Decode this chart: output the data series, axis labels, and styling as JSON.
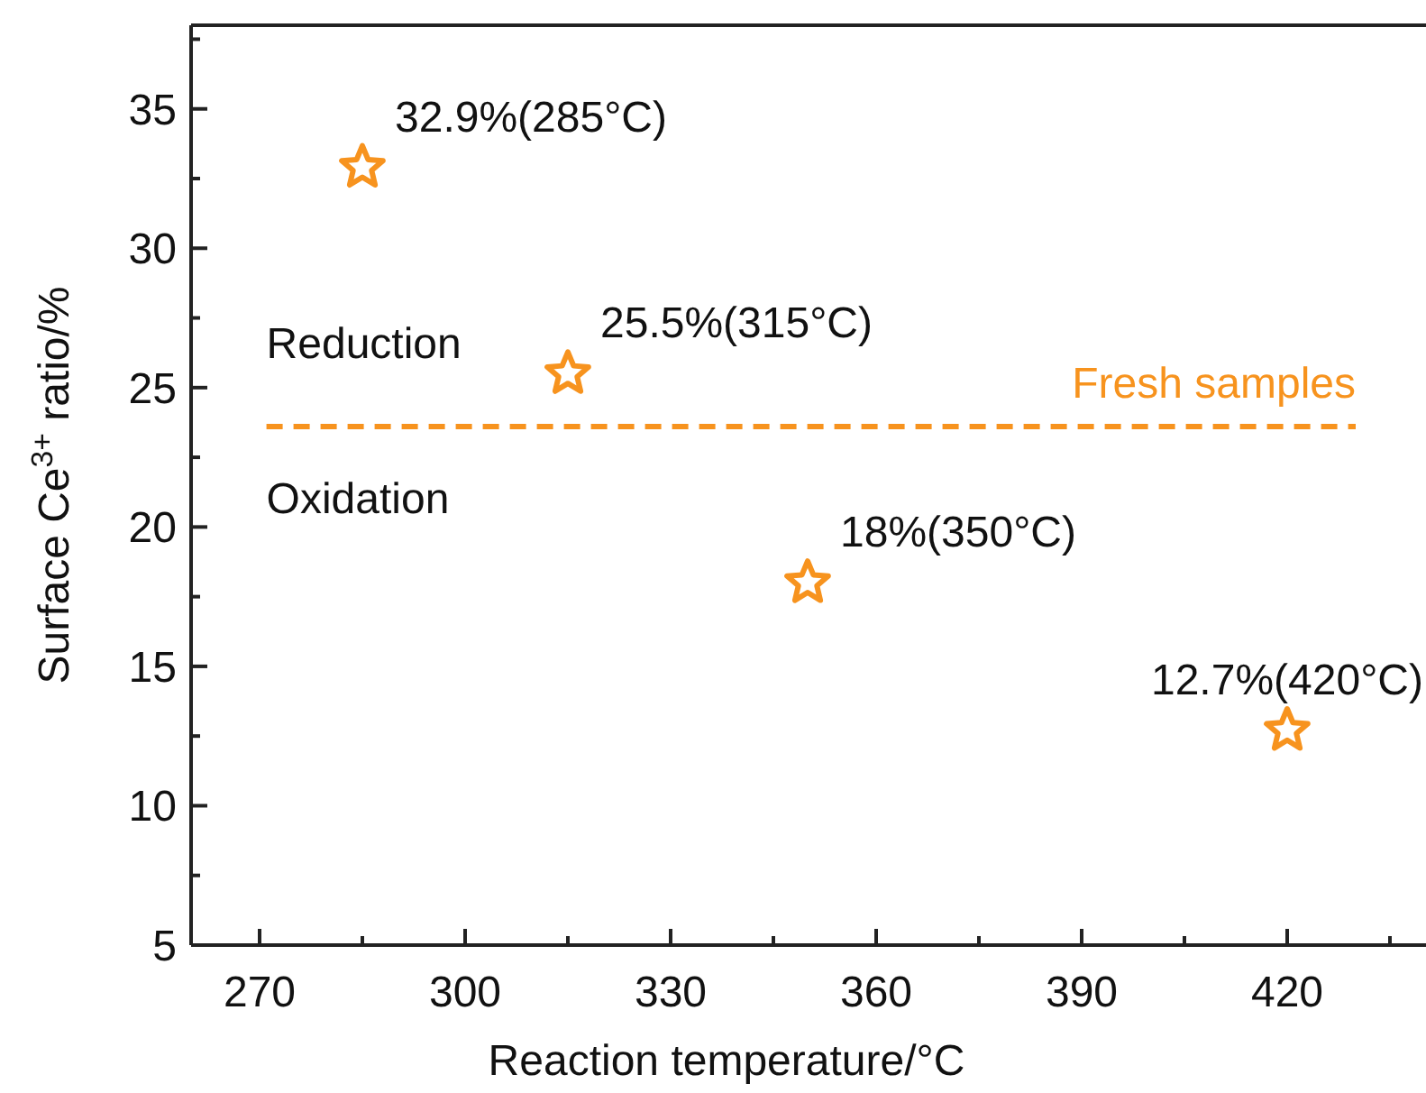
{
  "chart_data": {
    "type": "scatter",
    "xlabel": "Reaction temperature/°C",
    "ylabel": "Surface Ce$^{3+}$ ratio/%",
    "x": [
      285,
      315,
      350,
      420
    ],
    "series": [
      {
        "color": "#f7931e",
        "values": [
          32.9,
          25.5,
          18,
          12.7
        ],
        "value_labels": [
          "32.9%(285°C)",
          "25.5%(315°C)",
          "18%(350°C)",
          "12.7%(420°C)"
        ]
      }
    ],
    "marker": "star",
    "xlim": [
      260,
      440
    ],
    "xticks": [
      270,
      {
        "value": 285,
        "label": null
      },
      300,
      {
        "value": 315,
        "label": null
      },
      330,
      {
        "value": 345,
        "label": null
      },
      360,
      {
        "value": 375,
        "label": null
      },
      390,
      {
        "value": 405,
        "label": null
      },
      420,
      {
        "value": 435,
        "label": null
      }
    ],
    "ylim": [
      5,
      38
    ],
    "yticks": [
      5,
      {
        "value": 7.5,
        "label": null
      },
      10,
      {
        "value": 12.5,
        "label": null
      },
      15,
      {
        "value": 17.5,
        "label": null
      },
      20,
      {
        "value": 22.5,
        "label": null
      },
      25,
      {
        "value": 27.5,
        "label": null
      },
      30,
      {
        "value": 32.5,
        "label": null
      },
      35,
      {
        "value": 37.5,
        "label": null
      }
    ],
    "ref_lines": [
      {
        "axis": "y",
        "value": 23.6,
        "label": "Fresh samples",
        "color": "#f7931e",
        "line_style": "dashed"
      }
    ],
    "annotations": [
      "Reduction",
      "Oxidation"
    ],
    "grid": false
  }
}
